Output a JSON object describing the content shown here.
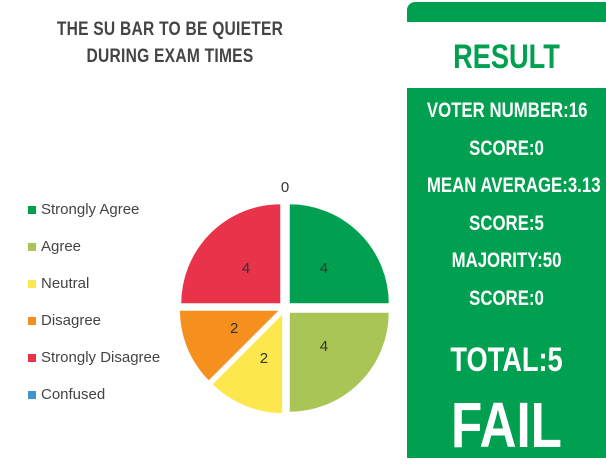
{
  "chart_data": {
    "type": "pie",
    "title": "THE SU BAR TO BE QUIETER DURING EXAM TIMES",
    "categories": [
      "Strongly Agree",
      "Agree",
      "Neutral",
      "Disagree",
      "Strongly Disagree",
      "Confused"
    ],
    "values": [
      4,
      4,
      2,
      2,
      4,
      0
    ],
    "colors": [
      "#00a050",
      "#a9c556",
      "#fde74c",
      "#f5901e",
      "#e8334a",
      "#3c96d2"
    ],
    "legend": "left"
  },
  "result": {
    "title": "RESULT",
    "lines": [
      "VOTER NUMBER:16",
      "SCORE:0",
      "MEAN AVERAGE:3.13",
      "SCORE:5",
      "MAJORITY:50",
      "SCORE:0"
    ],
    "total": "TOTAL:5",
    "verdict": "FAIL"
  }
}
